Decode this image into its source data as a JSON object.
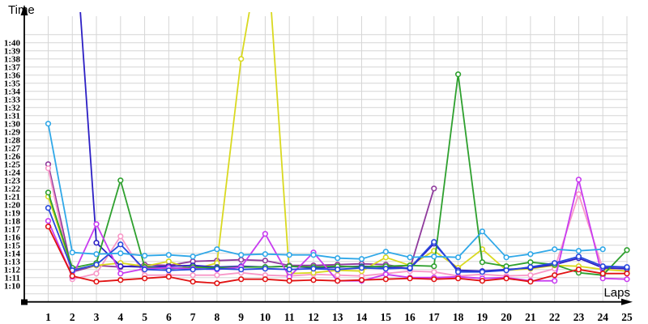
{
  "chart_data": {
    "type": "line",
    "xlabel": "Laps",
    "ylabel": "Time",
    "x": [
      1,
      2,
      3,
      4,
      5,
      6,
      7,
      8,
      9,
      10,
      11,
      12,
      13,
      14,
      15,
      16,
      17,
      18,
      19,
      20,
      21,
      22,
      23,
      24,
      25
    ],
    "xtick_labels": [
      "1",
      "2",
      "3",
      "4",
      "5",
      "6",
      "7",
      "8",
      "9",
      "10",
      "11",
      "12",
      "13",
      "14",
      "15",
      "16",
      "17",
      "18",
      "19",
      "20",
      "21",
      "22",
      "23",
      "24",
      "25"
    ],
    "ytick_labels": [
      "1:10",
      "1:11",
      "1:12",
      "1:13",
      "1:14",
      "1:15",
      "1:16",
      "1:17",
      "1:18",
      "1:19",
      "1:20",
      "1:21",
      "1:22",
      "1:23",
      "1:24",
      "1:25",
      "1:26",
      "1:27",
      "1:28",
      "1:29",
      "1:30",
      "1:31",
      "1:32",
      "1:33",
      "1:34",
      "1:35",
      "1:36",
      "1:37",
      "1:38",
      "1:39",
      "1:40"
    ],
    "ylim_seconds": [
      70,
      100
    ],
    "grid": true,
    "legend": "none",
    "marker": "circle",
    "series": [
      {
        "name": "purple",
        "color": "#8f3a9c",
        "times_seconds": [
          85.0,
          71.7,
          72.5,
          72.3,
          72.6,
          72.5,
          73.0,
          73.1,
          73.2,
          73.1,
          72.5,
          72.5,
          72.6,
          72.7,
          72.6,
          72.1,
          82.0,
          null,
          null,
          null,
          null,
          null,
          null,
          null,
          null
        ]
      },
      {
        "name": "pink",
        "color": "#f898c8",
        "times_seconds": [
          84.5,
          70.8,
          71.5,
          76.1,
          71.3,
          71.3,
          71.3,
          71.3,
          71.6,
          71.3,
          71.2,
          71.4,
          71.3,
          71.2,
          71.5,
          71.8,
          71.7,
          71.2,
          71.4,
          71.2,
          71.3,
          72.1,
          81.3,
          72.1,
          71.8
        ]
      },
      {
        "name": "yellow",
        "color": "#d9d920",
        "times_seconds": [
          81.0,
          72.0,
          72.5,
          72.8,
          72.4,
          73.0,
          72.0,
          72.8,
          98.0,
          115.0,
          71.5,
          71.6,
          71.9,
          71.8,
          73.5,
          72.5,
          74.3,
          72.2,
          74.5,
          71.9,
          72.1,
          72.5,
          72.4,
          72.0,
          71.8
        ]
      },
      {
        "name": "navy",
        "color": "#2c1fc4",
        "times_seconds": [
          null,
          118.0,
          75.3,
          72.4,
          72.3,
          72.4,
          72.5,
          72.3,
          72.4,
          72.3,
          72.4,
          72.2,
          72.3,
          72.4,
          72.3,
          72.1,
          75.2,
          71.9,
          71.8,
          72.0,
          72.2,
          72.6,
          73.4,
          72.2,
          72.1
        ]
      },
      {
        "name": "green",
        "color": "#2ea02e",
        "times_seconds": [
          81.5,
          72.2,
          72.8,
          83.0,
          72.3,
          72.1,
          72.3,
          72.2,
          72.3,
          72.3,
          72.4,
          72.3,
          72.4,
          72.3,
          72.4,
          72.5,
          72.4,
          96.1,
          72.9,
          72.4,
          72.9,
          72.6,
          71.6,
          71.3,
          74.4
        ]
      },
      {
        "name": "magenta",
        "color": "#c83cf0",
        "times_seconds": [
          78.0,
          71.1,
          77.6,
          71.5,
          72.1,
          72.2,
          72.1,
          72.0,
          72.3,
          76.4,
          71.1,
          74.1,
          70.6,
          70.6,
          71.4,
          71.0,
          71.0,
          71.1,
          70.9,
          71.0,
          70.6,
          70.6,
          83.1,
          70.9,
          70.8
        ]
      },
      {
        "name": "blue",
        "color": "#2747dd",
        "times_seconds": [
          79.6,
          71.9,
          72.6,
          75.1,
          72.0,
          71.9,
          72.0,
          72.1,
          72.0,
          72.1,
          72.0,
          72.1,
          72.0,
          72.2,
          72.1,
          72.2,
          75.4,
          71.7,
          71.7,
          71.9,
          72.3,
          72.8,
          73.6,
          72.4,
          72.3
        ]
      },
      {
        "name": "cyan",
        "color": "#30a8e8",
        "times_seconds": [
          90.0,
          74.1,
          73.9,
          74.0,
          73.7,
          73.8,
          73.6,
          74.5,
          73.8,
          73.9,
          73.8,
          73.8,
          73.4,
          73.3,
          74.2,
          73.5,
          73.6,
          73.5,
          76.7,
          73.5,
          73.9,
          74.5,
          74.3,
          74.5,
          null
        ]
      },
      {
        "name": "red",
        "color": "#e11212",
        "times_seconds": [
          77.3,
          71.2,
          70.5,
          70.7,
          70.9,
          71.1,
          70.5,
          70.3,
          70.8,
          70.8,
          70.6,
          70.7,
          70.6,
          70.7,
          70.8,
          70.9,
          70.8,
          70.9,
          70.6,
          70.9,
          70.5,
          71.3,
          72.0,
          71.5,
          71.5
        ]
      }
    ],
    "style": {
      "grid_color": "#d6d6d6",
      "axis_color": "#000000",
      "marker_fill": "#ffffff"
    }
  }
}
